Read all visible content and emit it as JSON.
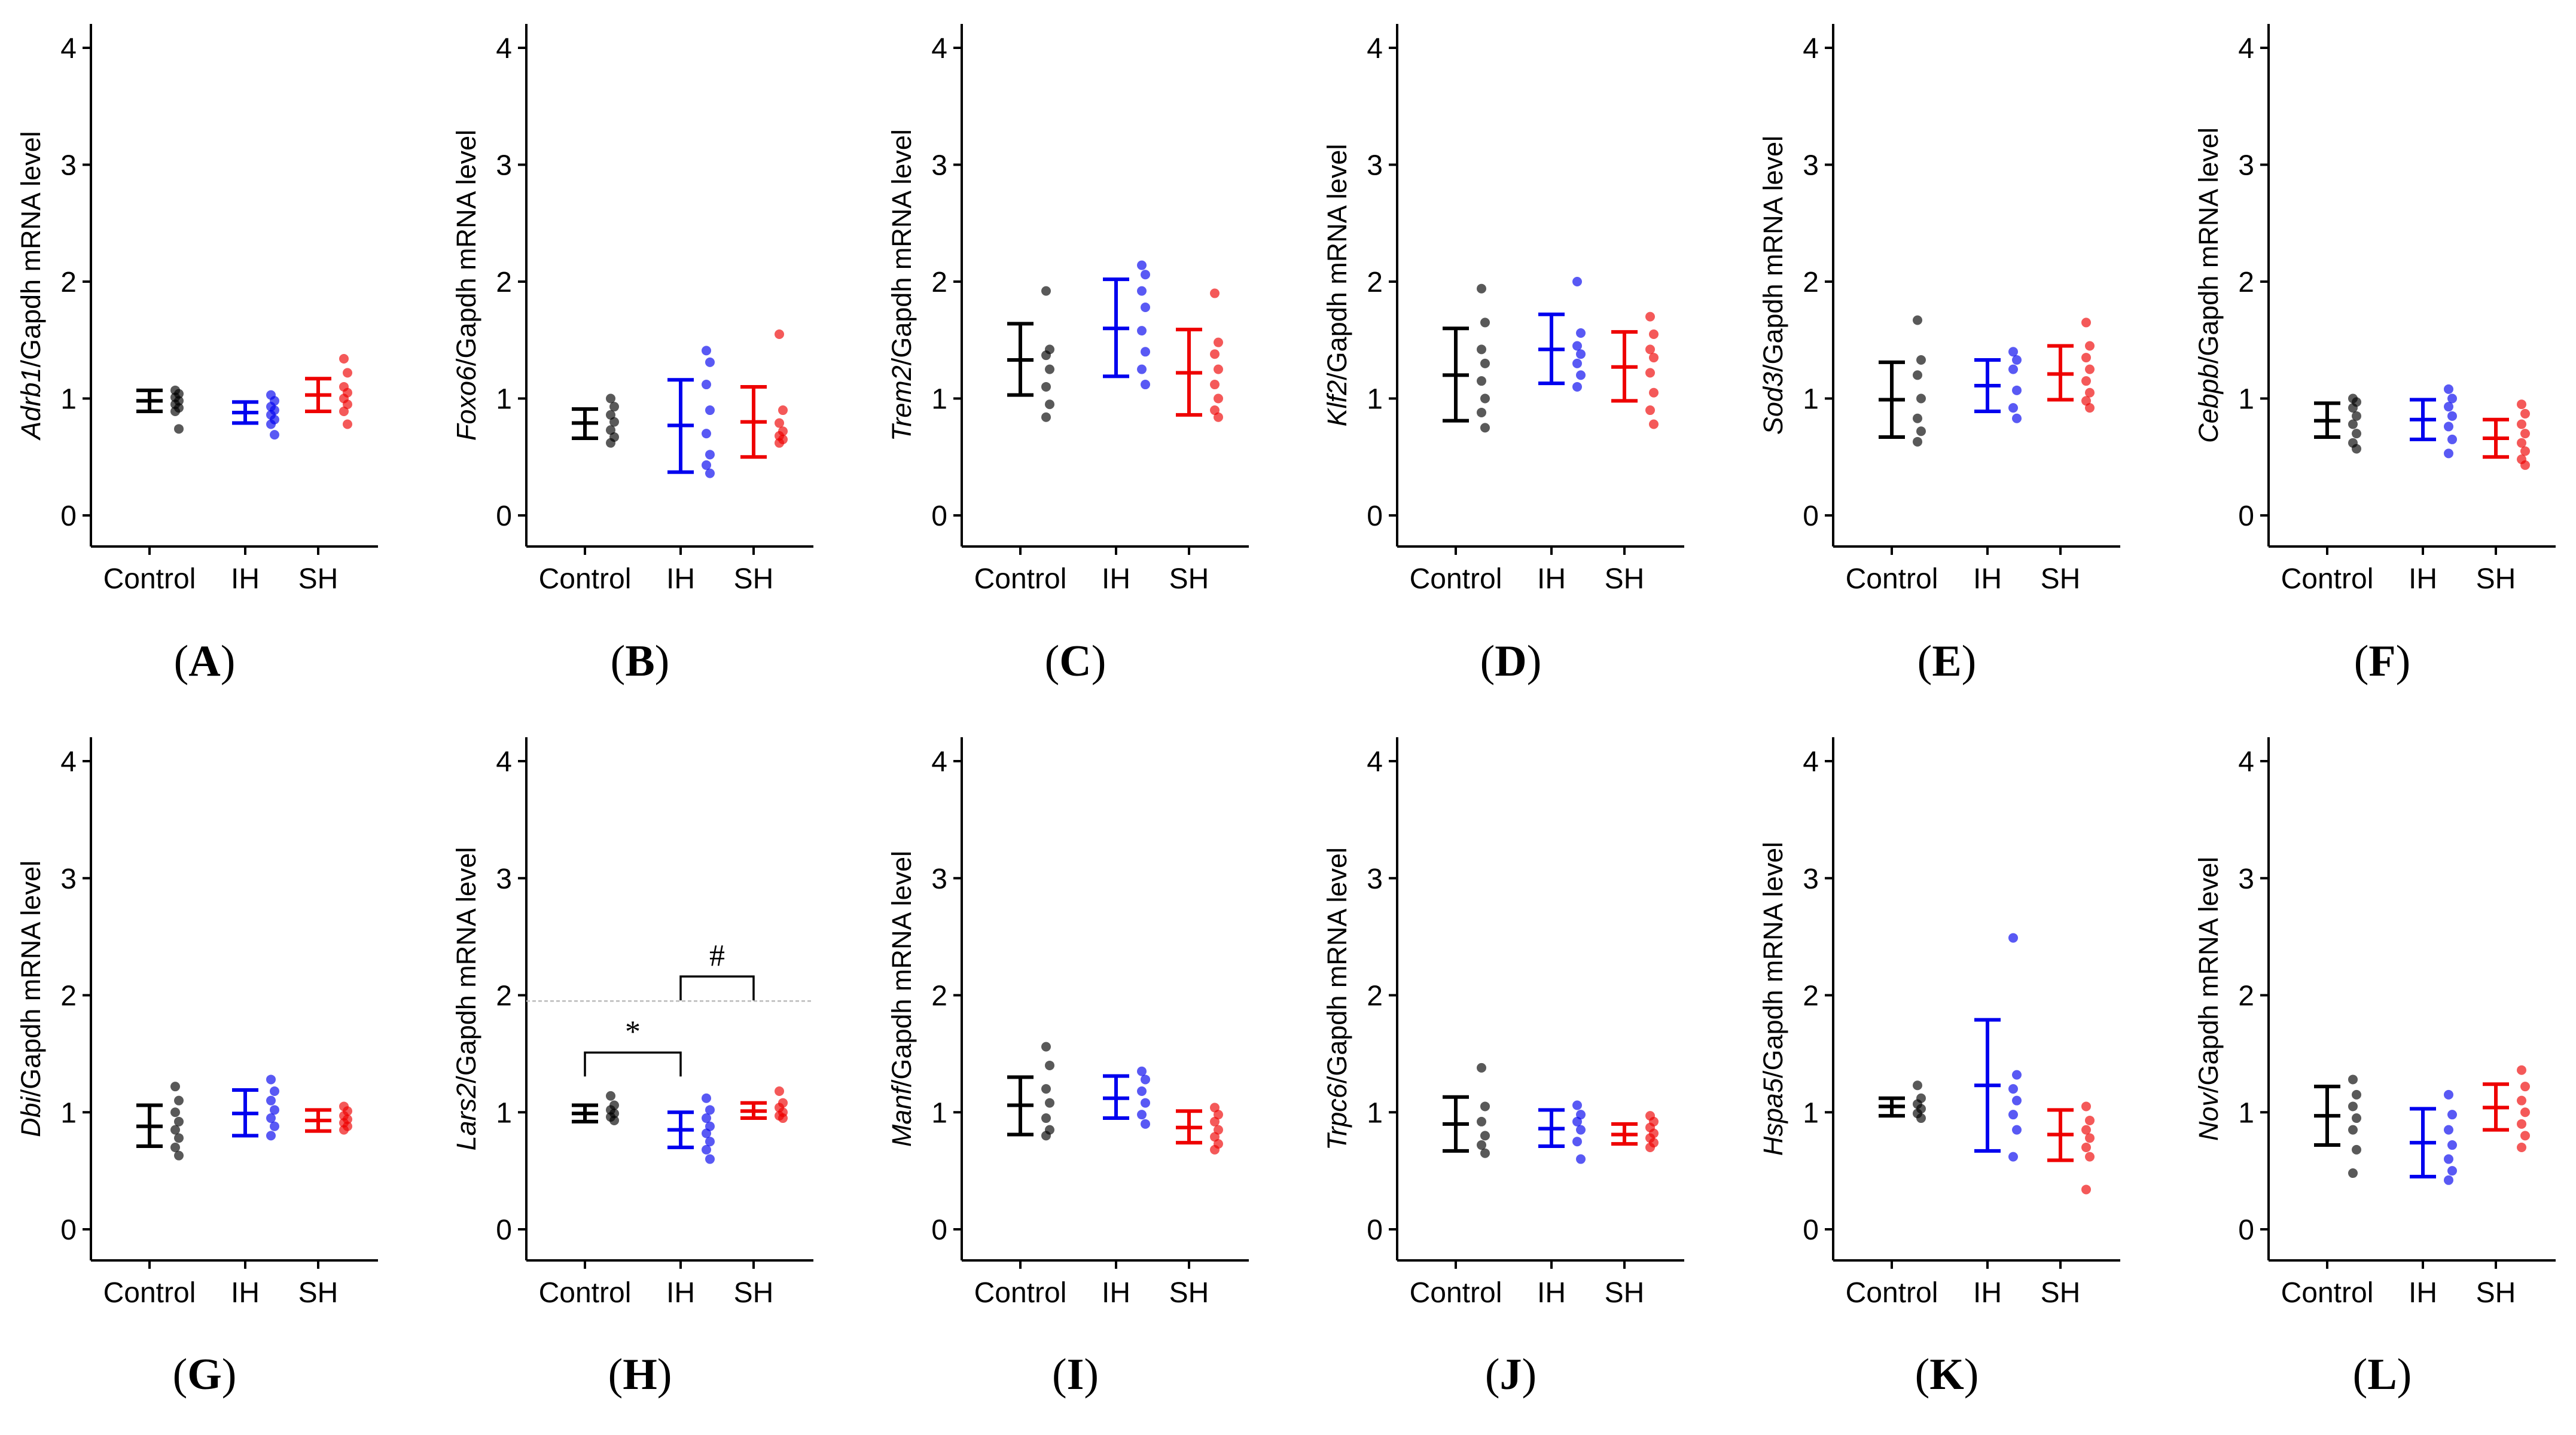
{
  "colors": {
    "Control": "#000000",
    "IH": "#0000ee",
    "SH": "#ee0000",
    "guide": "#bbbbbb"
  },
  "chart_data": [
    {
      "letter": "A",
      "type": "scatter",
      "gene": "Adrb1",
      "ylabel_suffix": "/Gapdh mRNA level",
      "categories": [
        "Control",
        "IH",
        "SH"
      ],
      "ylim": [
        0,
        4
      ],
      "yticks": [
        "0",
        "1",
        "2",
        "3",
        "4"
      ],
      "series": [
        {
          "group": "Control",
          "mean": 0.98,
          "lower": 0.89,
          "upper": 1.07,
          "points": [
            1.07,
            1.04,
            1.01,
            0.98,
            0.95,
            0.92,
            0.89,
            0.74
          ]
        },
        {
          "group": "IH",
          "mean": 0.88,
          "lower": 0.79,
          "upper": 0.97,
          "points": [
            1.03,
            0.98,
            0.93,
            0.9,
            0.86,
            0.82,
            0.78,
            0.69
          ]
        },
        {
          "group": "SH",
          "mean": 1.03,
          "lower": 0.89,
          "upper": 1.17,
          "points": [
            1.34,
            1.22,
            1.1,
            1.05,
            1.0,
            0.95,
            0.89,
            0.78
          ]
        }
      ]
    },
    {
      "letter": "B",
      "type": "scatter",
      "gene": "Foxo6",
      "ylabel_suffix": "/Gapdh mRNA level",
      "categories": [
        "Control",
        "IH",
        "SH"
      ],
      "ylim": [
        0,
        4
      ],
      "yticks": [
        "0",
        "1",
        "2",
        "3",
        "4"
      ],
      "series": [
        {
          "group": "Control",
          "mean": 0.79,
          "lower": 0.66,
          "upper": 0.91,
          "points": [
            1.0,
            0.93,
            0.86,
            0.8,
            0.73,
            0.67,
            0.62
          ]
        },
        {
          "group": "IH",
          "mean": 0.77,
          "lower": 0.37,
          "upper": 1.16,
          "points": [
            1.41,
            1.31,
            1.12,
            0.9,
            0.7,
            0.52,
            0.43,
            0.36
          ]
        },
        {
          "group": "SH",
          "mean": 0.8,
          "lower": 0.5,
          "upper": 1.1,
          "points": [
            1.55,
            0.9,
            0.79,
            0.72,
            0.68,
            0.65,
            0.62
          ]
        }
      ]
    },
    {
      "letter": "C",
      "type": "scatter",
      "gene": "Trem2",
      "ylabel_suffix": "/Gapdh mRNA level",
      "categories": [
        "Control",
        "IH",
        "SH"
      ],
      "ylim": [
        0,
        4
      ],
      "yticks": [
        "0",
        "1",
        "2",
        "3",
        "4"
      ],
      "series": [
        {
          "group": "Control",
          "mean": 1.33,
          "lower": 1.03,
          "upper": 1.64,
          "points": [
            1.92,
            1.42,
            1.37,
            1.25,
            1.1,
            0.95,
            0.84
          ]
        },
        {
          "group": "IH",
          "mean": 1.6,
          "lower": 1.19,
          "upper": 2.02,
          "points": [
            2.14,
            2.06,
            1.92,
            1.78,
            1.58,
            1.4,
            1.25,
            1.12
          ]
        },
        {
          "group": "SH",
          "mean": 1.22,
          "lower": 0.86,
          "upper": 1.59,
          "points": [
            1.9,
            1.48,
            1.38,
            1.25,
            1.12,
            1.0,
            0.9,
            0.84
          ]
        }
      ]
    },
    {
      "letter": "D",
      "type": "scatter",
      "gene": "Klf2",
      "ylabel_suffix": "/Gapdh mRNA level",
      "categories": [
        "Control",
        "IH",
        "SH"
      ],
      "ylim": [
        0,
        4
      ],
      "yticks": [
        "0",
        "1",
        "2",
        "3",
        "4"
      ],
      "series": [
        {
          "group": "Control",
          "mean": 1.2,
          "lower": 0.81,
          "upper": 1.6,
          "points": [
            1.94,
            1.65,
            1.42,
            1.3,
            1.15,
            1.0,
            0.88,
            0.75
          ]
        },
        {
          "group": "IH",
          "mean": 1.42,
          "lower": 1.13,
          "upper": 1.72,
          "points": [
            2.0,
            1.56,
            1.45,
            1.38,
            1.3,
            1.2,
            1.1
          ]
        },
        {
          "group": "SH",
          "mean": 1.27,
          "lower": 0.98,
          "upper": 1.57,
          "points": [
            1.7,
            1.55,
            1.42,
            1.35,
            1.22,
            1.05,
            0.9,
            0.78
          ]
        }
      ]
    },
    {
      "letter": "E",
      "type": "scatter",
      "gene": "Sod3",
      "ylabel_suffix": "/Gapdh mRNA level",
      "categories": [
        "Control",
        "IH",
        "SH"
      ],
      "ylim": [
        0,
        4
      ],
      "yticks": [
        "0",
        "1",
        "2",
        "3",
        "4"
      ],
      "series": [
        {
          "group": "Control",
          "mean": 0.99,
          "lower": 0.67,
          "upper": 1.31,
          "points": [
            1.67,
            1.33,
            1.2,
            1.0,
            0.83,
            0.72,
            0.63
          ]
        },
        {
          "group": "IH",
          "mean": 1.11,
          "lower": 0.89,
          "upper": 1.33,
          "points": [
            1.4,
            1.33,
            1.25,
            1.07,
            0.92,
            0.83
          ]
        },
        {
          "group": "SH",
          "mean": 1.21,
          "lower": 0.99,
          "upper": 1.45,
          "points": [
            1.65,
            1.45,
            1.35,
            1.25,
            1.15,
            1.05,
            0.98,
            0.92
          ]
        }
      ]
    },
    {
      "letter": "F",
      "type": "scatter",
      "gene": "Cebpb",
      "ylabel_suffix": "/Gapdh mRNA level",
      "categories": [
        "Control",
        "IH",
        "SH"
      ],
      "ylim": [
        0,
        4
      ],
      "yticks": [
        "0",
        "1",
        "2",
        "3",
        "4"
      ],
      "series": [
        {
          "group": "Control",
          "mean": 0.81,
          "lower": 0.67,
          "upper": 0.96,
          "points": [
            1.0,
            0.97,
            0.92,
            0.85,
            0.78,
            0.7,
            0.62,
            0.57
          ]
        },
        {
          "group": "IH",
          "mean": 0.82,
          "lower": 0.65,
          "upper": 0.99,
          "points": [
            1.08,
            1.0,
            0.93,
            0.85,
            0.76,
            0.65,
            0.53
          ]
        },
        {
          "group": "SH",
          "mean": 0.66,
          "lower": 0.5,
          "upper": 0.82,
          "points": [
            0.95,
            0.87,
            0.78,
            0.7,
            0.62,
            0.55,
            0.48,
            0.43
          ]
        }
      ]
    },
    {
      "letter": "G",
      "type": "scatter",
      "gene": "Dbi",
      "ylabel_suffix": "/Gapdh mRNA level",
      "categories": [
        "Control",
        "IH",
        "SH"
      ],
      "ylim": [
        0,
        4
      ],
      "yticks": [
        "0",
        "1",
        "2",
        "3",
        "4"
      ],
      "series": [
        {
          "group": "Control",
          "mean": 0.88,
          "lower": 0.71,
          "upper": 1.06,
          "points": [
            1.22,
            1.1,
            1.0,
            0.92,
            0.85,
            0.78,
            0.7,
            0.63
          ]
        },
        {
          "group": "IH",
          "mean": 0.99,
          "lower": 0.8,
          "upper": 1.19,
          "points": [
            1.28,
            1.18,
            1.1,
            1.02,
            0.95,
            0.88,
            0.8
          ]
        },
        {
          "group": "SH",
          "mean": 0.93,
          "lower": 0.84,
          "upper": 1.02,
          "points": [
            1.05,
            1.01,
            0.97,
            0.94,
            0.91,
            0.88,
            0.85
          ]
        }
      ]
    },
    {
      "letter": "H",
      "type": "scatter",
      "gene": "Lars2",
      "ylabel_suffix": "/Gapdh mRNA level",
      "categories": [
        "Control",
        "IH",
        "SH"
      ],
      "ylim": [
        0,
        4
      ],
      "yticks": [
        "0",
        "1",
        "2",
        "3",
        "4"
      ],
      "series": [
        {
          "group": "Control",
          "mean": 0.99,
          "lower": 0.92,
          "upper": 1.06,
          "points": [
            1.14,
            1.06,
            1.02,
            0.99,
            0.96,
            0.93
          ]
        },
        {
          "group": "IH",
          "mean": 0.85,
          "lower": 0.7,
          "upper": 1.0,
          "points": [
            1.12,
            1.02,
            0.95,
            0.88,
            0.82,
            0.75,
            0.68,
            0.6
          ]
        },
        {
          "group": "SH",
          "mean": 1.01,
          "lower": 0.95,
          "upper": 1.08,
          "points": [
            1.18,
            1.08,
            1.04,
            1.0,
            0.97,
            0.95
          ]
        }
      ],
      "annotations": [
        {
          "from": "Control",
          "to": "IH",
          "y": 1.51,
          "label": "*"
        },
        {
          "from": "IH",
          "to": "SH",
          "y": 2.16,
          "label": "#"
        }
      ],
      "guide_line": 1.95
    },
    {
      "letter": "I",
      "type": "scatter",
      "gene": "Manf",
      "ylabel_suffix": "/Gapdh mRNA level",
      "categories": [
        "Control",
        "IH",
        "SH"
      ],
      "ylim": [
        0,
        4
      ],
      "yticks": [
        "0",
        "1",
        "2",
        "3",
        "4"
      ],
      "series": [
        {
          "group": "Control",
          "mean": 1.06,
          "lower": 0.81,
          "upper": 1.3,
          "points": [
            1.56,
            1.4,
            1.2,
            1.08,
            0.95,
            0.85,
            0.8
          ]
        },
        {
          "group": "IH",
          "mean": 1.12,
          "lower": 0.95,
          "upper": 1.31,
          "points": [
            1.35,
            1.28,
            1.18,
            1.08,
            0.98,
            0.9
          ]
        },
        {
          "group": "SH",
          "mean": 0.87,
          "lower": 0.74,
          "upper": 1.01,
          "points": [
            1.04,
            0.98,
            0.92,
            0.85,
            0.79,
            0.73,
            0.68
          ]
        }
      ]
    },
    {
      "letter": "J",
      "type": "scatter",
      "gene": "Trpc6",
      "ylabel_suffix": "/Gapdh mRNA level",
      "categories": [
        "Control",
        "IH",
        "SH"
      ],
      "ylim": [
        0,
        4
      ],
      "yticks": [
        "0",
        "1",
        "2",
        "3",
        "4"
      ],
      "series": [
        {
          "group": "Control",
          "mean": 0.9,
          "lower": 0.67,
          "upper": 1.13,
          "points": [
            1.38,
            1.05,
            0.92,
            0.8,
            0.72,
            0.65
          ]
        },
        {
          "group": "IH",
          "mean": 0.86,
          "lower": 0.71,
          "upper": 1.02,
          "points": [
            1.06,
            0.98,
            0.92,
            0.85,
            0.75,
            0.6
          ]
        },
        {
          "group": "SH",
          "mean": 0.81,
          "lower": 0.73,
          "upper": 0.9,
          "points": [
            0.97,
            0.92,
            0.87,
            0.82,
            0.78,
            0.74,
            0.7
          ]
        }
      ]
    },
    {
      "letter": "K",
      "type": "scatter",
      "gene": "Hspa5",
      "ylabel_suffix": "/Gapdh mRNA level",
      "categories": [
        "Control",
        "IH",
        "SH"
      ],
      "ylim": [
        0,
        4
      ],
      "yticks": [
        "0",
        "1",
        "2",
        "3",
        "4"
      ],
      "series": [
        {
          "group": "Control",
          "mean": 1.05,
          "lower": 0.97,
          "upper": 1.12,
          "points": [
            1.23,
            1.12,
            1.07,
            1.03,
            0.99,
            0.95
          ]
        },
        {
          "group": "IH",
          "mean": 1.23,
          "lower": 0.67,
          "upper": 1.79,
          "points": [
            2.49,
            1.32,
            1.2,
            1.1,
            0.98,
            0.85,
            0.62
          ]
        },
        {
          "group": "SH",
          "mean": 0.81,
          "lower": 0.59,
          "upper": 1.02,
          "points": [
            1.05,
            0.93,
            0.85,
            0.78,
            0.7,
            0.62,
            0.34
          ]
        }
      ]
    },
    {
      "letter": "L",
      "type": "scatter",
      "gene": "Nov",
      "ylabel_suffix": "/Gapdh mRNA level",
      "categories": [
        "Control",
        "IH",
        "SH"
      ],
      "ylim": [
        0,
        4
      ],
      "yticks": [
        "0",
        "1",
        "2",
        "3",
        "4"
      ],
      "series": [
        {
          "group": "Control",
          "mean": 0.97,
          "lower": 0.72,
          "upper": 1.22,
          "points": [
            1.28,
            1.15,
            1.05,
            0.95,
            0.85,
            0.68,
            0.48
          ]
        },
        {
          "group": "IH",
          "mean": 0.74,
          "lower": 0.45,
          "upper": 1.03,
          "points": [
            1.15,
            0.98,
            0.85,
            0.72,
            0.6,
            0.5,
            0.42
          ]
        },
        {
          "group": "SH",
          "mean": 1.04,
          "lower": 0.85,
          "upper": 1.24,
          "points": [
            1.36,
            1.22,
            1.1,
            1.0,
            0.9,
            0.8,
            0.7
          ]
        }
      ]
    }
  ]
}
